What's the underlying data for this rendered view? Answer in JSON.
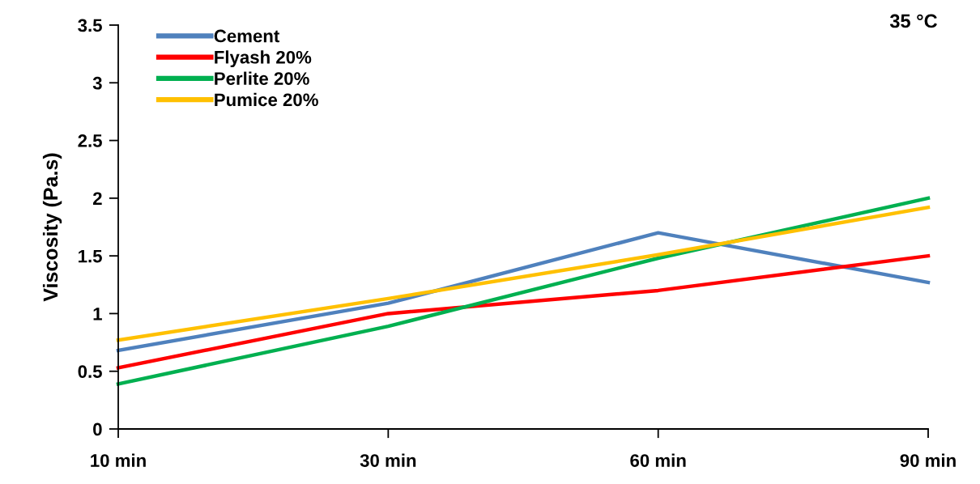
{
  "chart_data": {
    "type": "line",
    "ylabel": "Viscosity (Pa.s)",
    "annotations": [
      "35 °C"
    ],
    "categories": [
      "10 min",
      "30 min",
      "60 min",
      "90 min"
    ],
    "series": [
      {
        "name": "Cement",
        "color": "#4f81bd",
        "values": [
          0.68,
          1.09,
          1.7,
          1.27
        ]
      },
      {
        "name": "Flyash 20%",
        "color": "#ff0000",
        "values": [
          0.53,
          1.0,
          1.2,
          1.5
        ]
      },
      {
        "name": "Perlite 20%",
        "color": "#00b050",
        "values": [
          0.39,
          0.89,
          1.48,
          2.0
        ]
      },
      {
        "name": "Pumice 20%",
        "color": "#ffc000",
        "values": [
          0.77,
          1.13,
          1.51,
          1.92
        ]
      }
    ],
    "ylim": [
      0,
      3.5
    ],
    "yticks": [
      0,
      {
        "value": 0.5,
        "label": "0.5"
      },
      1,
      {
        "value": 1.5,
        "label": "1.5"
      },
      2,
      {
        "value": 2.5,
        "label": "2.5"
      },
      3,
      {
        "value": 3.5,
        "label": "3.5"
      }
    ],
    "grid": false,
    "legend": "top left",
    "marker": "none",
    "line_style": "solid"
  }
}
